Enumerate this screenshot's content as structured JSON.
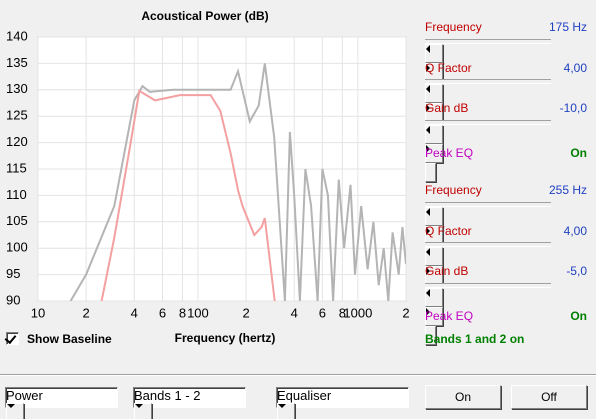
{
  "chart_data": {
    "type": "line",
    "title": "Acoustical Power (dB)",
    "x_label": "Frequency (hertz)",
    "xscale": "log",
    "xlim": [
      10,
      2000
    ],
    "xticks": [
      10,
      {
        "value": 20,
        "label": "2"
      },
      {
        "value": 40,
        "label": "4"
      },
      {
        "value": 60,
        "label": "6"
      },
      {
        "value": 80,
        "label": "8"
      },
      100,
      {
        "value": 200,
        "label": "2"
      },
      {
        "value": 400,
        "label": "4"
      },
      {
        "value": 600,
        "label": "6"
      },
      {
        "value": 800,
        "label": "8"
      },
      1000,
      {
        "value": 2000,
        "label": "2"
      }
    ],
    "ylim": [
      90,
      140
    ],
    "yticks": [
      90,
      95,
      100,
      105,
      110,
      115,
      120,
      125,
      130,
      135,
      140
    ],
    "grid": true,
    "series": [
      {
        "color": "#b4b4b4",
        "x": [
          16,
          20,
          30,
          40,
          45,
          50,
          70,
          100,
          130,
          160,
          178,
          211,
          240,
          262,
          300,
          350,
          376,
          400,
          434,
          470,
          510,
          560,
          600,
          650,
          700,
          760,
          820,
          900,
          960,
          1050,
          1150,
          1250,
          1350,
          1450,
          1550,
          1650,
          1800,
          1900,
          2000
        ],
        "values": [
          90,
          95,
          108,
          128,
          130.7,
          129.6,
          130,
          130,
          130,
          130,
          133.5,
          124,
          127,
          135,
          121,
          90,
          122,
          110,
          90,
          115,
          108,
          90,
          115,
          110,
          90,
          113,
          100,
          112,
          95,
          108,
          96,
          105,
          93,
          100,
          90,
          103,
          95,
          104,
          97
        ]
      },
      {
        "color": "#f4a0a0",
        "x": [
          25,
          30,
          38,
          43,
          54,
          77,
          120,
          138,
          160,
          178,
          190,
          225,
          250,
          262,
          302
        ],
        "values": [
          90,
          102,
          120,
          129.8,
          128,
          129,
          129,
          126,
          118,
          111,
          108,
          102.5,
          104,
          105.7,
          90
        ]
      }
    ]
  },
  "baseline_checkbox": {
    "label": "Show Baseline",
    "checked": true
  },
  "bands": [
    {
      "frequency_label": "Frequency",
      "frequency": "175 Hz",
      "q_label": "Q Factor",
      "q": "4,00",
      "gain_label": "Gain  dB",
      "gain": "-10,0",
      "mode_label": "Peak EQ",
      "mode": "On"
    },
    {
      "frequency_label": "Frequency",
      "frequency": "255 Hz",
      "q_label": "Q Factor",
      "q": "4,00",
      "gain_label": "Gain  dB",
      "gain": "-5,0",
      "mode_label": "Peak EQ",
      "mode": "On"
    }
  ],
  "status": "Bands 1 and 2 on",
  "selectors": [
    "Power",
    "Bands 1 - 2",
    "Equaliser"
  ],
  "buttons": [
    "On",
    "Off"
  ]
}
